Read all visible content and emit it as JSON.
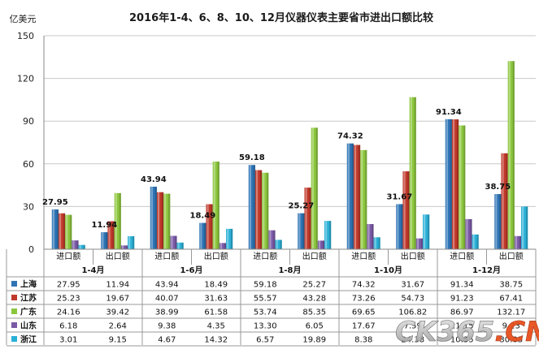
{
  "chart_data": {
    "type": "bar",
    "title": "2016年1-4、6、8、10、12月仪器仪表主要省市进出口额比较",
    "ylabel": "亿美元",
    "ylim": [
      0,
      150
    ],
    "yticks": [
      0,
      30,
      60,
      90,
      120,
      150
    ],
    "grid": true,
    "legend": "table-rows-left",
    "groups": [
      "1-4月",
      "1-6月",
      "1-8月",
      "1-10月",
      "1-12月"
    ],
    "subcategories": [
      "进口额",
      "出口额"
    ],
    "categories": [
      "1-4月 进口额",
      "1-4月 出口额",
      "1-6月 进口额",
      "1-6月 出口额",
      "1-8月 进口额",
      "1-8月 出口额",
      "1-10月 进口额",
      "1-10月 出口额",
      "1-12月 进口额",
      "1-12月 出口额"
    ],
    "series": [
      {
        "name": "上海",
        "color": "#2e74b5",
        "values": [
          27.95,
          11.94,
          43.94,
          18.49,
          59.18,
          25.27,
          74.32,
          31.67,
          91.34,
          38.75
        ]
      },
      {
        "name": "江苏",
        "color": "#c0392b",
        "values": [
          25.23,
          19.67,
          40.07,
          31.63,
          55.57,
          43.28,
          73.26,
          54.73,
          91.23,
          67.41
        ]
      },
      {
        "name": "广东",
        "color": "#8cc63e",
        "values": [
          24.16,
          39.42,
          38.99,
          61.58,
          53.74,
          85.35,
          69.65,
          106.82,
          86.97,
          132.17
        ]
      },
      {
        "name": "山东",
        "color": "#7a5aa6",
        "values": [
          6.18,
          2.64,
          9.38,
          4.35,
          13.3,
          6.05,
          17.67,
          7.59,
          21.15,
          9.23
        ]
      },
      {
        "name": "浙江",
        "color": "#2bb0d6",
        "values": [
          3.01,
          9.15,
          4.67,
          14.32,
          6.57,
          19.89,
          8.38,
          24.38,
          10.35,
          30.03
        ]
      }
    ],
    "table": [
      [
        "27.95",
        "11.94",
        "43.94",
        "18.49",
        "59.18",
        "25.27",
        "74.32",
        "31.67",
        "91.34",
        "38.75"
      ],
      [
        "25.23",
        "19.67",
        "40.07",
        "31.63",
        "55.57",
        "43.28",
        "73.26",
        "54.73",
        "91.23",
        "67.41"
      ],
      [
        "24.16",
        "39.42",
        "38.99",
        "61.58",
        "53.74",
        "85.35",
        "69.65",
        "106.82",
        "86.97",
        "132.17"
      ],
      [
        "6.18",
        "2.64",
        "9.38",
        "4.35",
        "13.30",
        "6.05",
        "17.67",
        "7.59",
        "21.15",
        "9.23"
      ],
      [
        "3.01",
        "9.15",
        "4.67",
        "14.32",
        "6.57",
        "19.89",
        "8.38",
        "24.38",
        "10.35",
        "30.03"
      ]
    ],
    "annotations": [
      "27.95",
      "11.94",
      "43.94",
      "18.49",
      "59.18",
      "25.27",
      "74.32",
      "31.67",
      "91.34",
      "38.75"
    ]
  },
  "watermark": {
    "text": "CK365.CN"
  }
}
